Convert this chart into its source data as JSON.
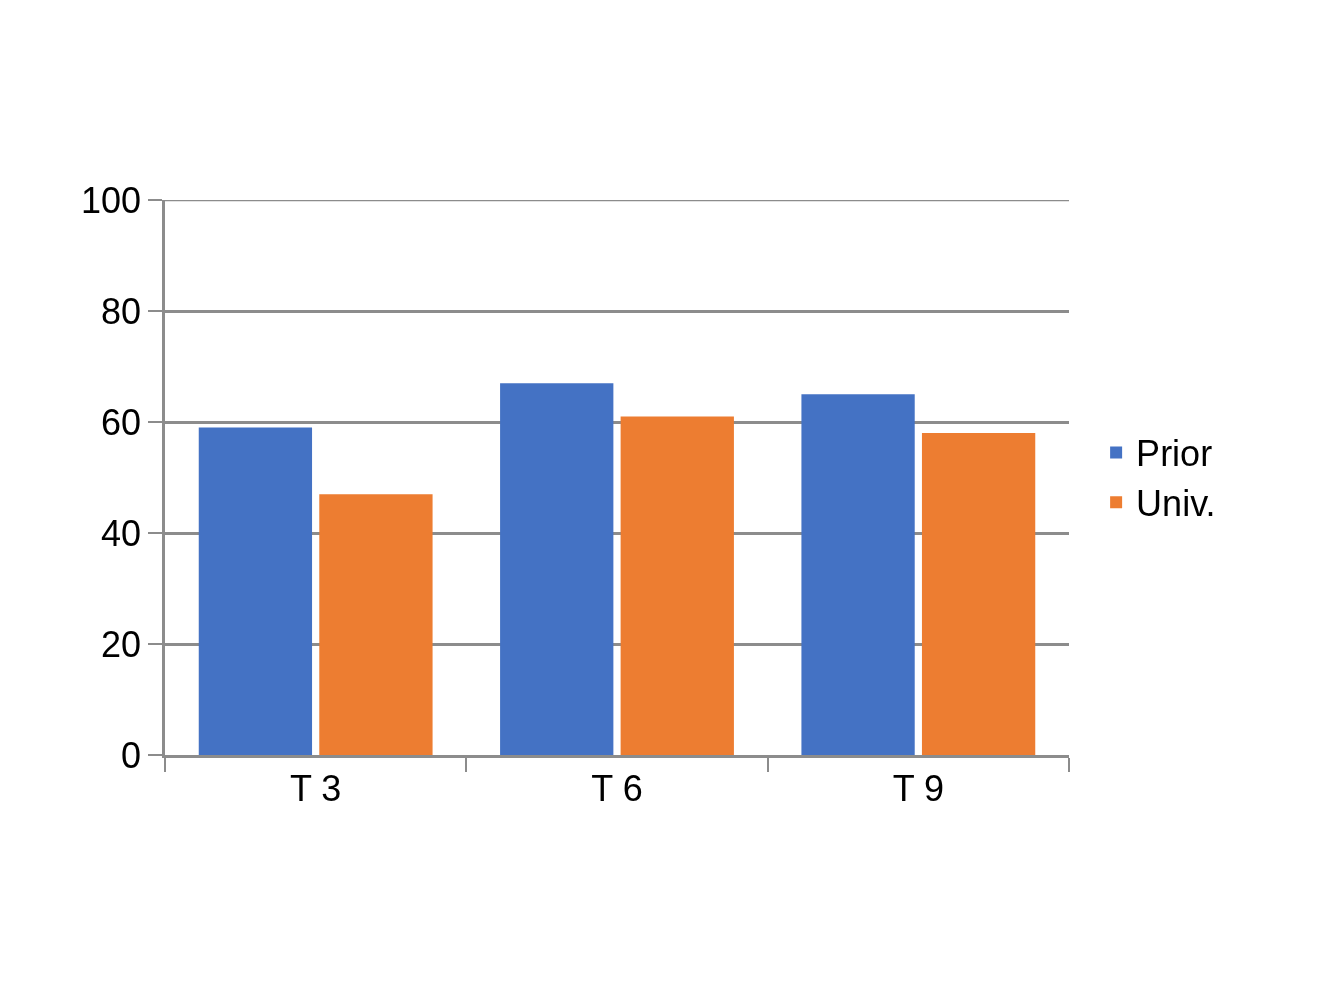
{
  "chart_data": {
    "type": "bar",
    "categories": [
      "T 3",
      "T 6",
      "T 9"
    ],
    "series": [
      {
        "name": "Prior",
        "color": "#4472c4",
        "values": [
          59,
          67,
          65
        ]
      },
      {
        "name": "Univ.",
        "color": "#ed7d31",
        "values": [
          47,
          61,
          58
        ]
      }
    ],
    "ylim": [
      0,
      100
    ],
    "yticks": [
      0,
      20,
      40,
      60,
      80,
      100
    ],
    "grid": "y",
    "legend": "right"
  }
}
